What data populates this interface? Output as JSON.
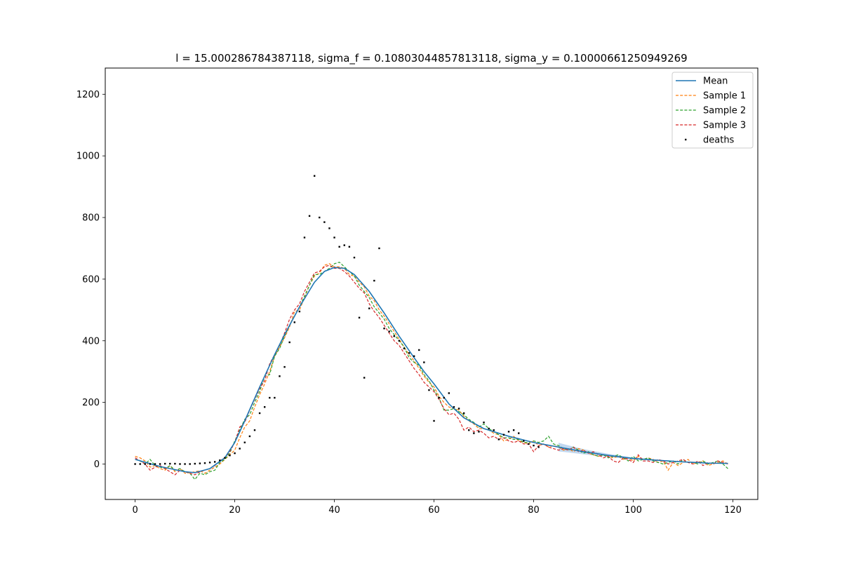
{
  "chart_data": {
    "type": "line",
    "title": "l = 15.000286784387118, sigma_f = 0.10803044857813118, sigma_y = 0.10000661250949269",
    "xlabel": "",
    "ylabel": "",
    "xlim": [
      -6,
      125
    ],
    "ylim": [
      -115,
      1285
    ],
    "xticks": [
      0,
      20,
      40,
      60,
      80,
      100,
      120
    ],
    "yticks": [
      0,
      200,
      400,
      600,
      800,
      1000,
      1200
    ],
    "grid": false,
    "legend_position": "top-right",
    "colors": {
      "mean": "#1f77b4",
      "band": "#a6c8ea",
      "sample1": "#ff7f0e",
      "sample2": "#2ca02c",
      "sample3": "#d62728",
      "deaths": "#000000"
    },
    "legend": [
      "Mean",
      "Sample 1",
      "Sample 2",
      "Sample 3",
      "deaths"
    ],
    "band_start_day": 85,
    "mean": {
      "name": "Mean",
      "x": [
        0,
        5,
        10,
        12,
        15,
        18,
        20,
        22,
        25,
        28,
        30,
        33,
        36,
        38,
        40,
        42,
        44,
        47,
        50,
        53,
        56,
        58,
        60,
        63,
        66,
        70,
        75,
        80,
        85,
        90,
        95,
        100,
        105,
        110,
        115,
        119
      ],
      "y": [
        15,
        -8,
        -25,
        -28,
        -15,
        20,
        70,
        140,
        250,
        355,
        420,
        510,
        590,
        625,
        638,
        635,
        615,
        560,
        490,
        415,
        345,
        300,
        260,
        195,
        150,
        115,
        90,
        70,
        55,
        40,
        28,
        18,
        12,
        7,
        3,
        2
      ]
    },
    "samples": [
      {
        "name": "Sample 1",
        "y": [
          25,
          20,
          10,
          -10,
          -5,
          -15,
          -20,
          -5,
          -25,
          -15,
          -30,
          -28,
          -25,
          -22,
          -30,
          -20,
          -10,
          0,
          15,
          30,
          45,
          85,
          120,
          140,
          185,
          225,
          260,
          300,
          350,
          380,
          410,
          445,
          495,
          500,
          540,
          580,
          610,
          620,
          645,
          650,
          640,
          640,
          635,
          615,
          610,
          590,
          575,
          545,
          530,
          500,
          480,
          455,
          430,
          405,
          380,
          355,
          335,
          310,
          285,
          265,
          250,
          220,
          200,
          185,
          180,
          175,
          155,
          140,
          130,
          115,
          115,
          110,
          100,
          95,
          75,
          80,
          90,
          75,
          70,
          65,
          75,
          60,
          65,
          55,
          60,
          55,
          45,
          50,
          40,
          50,
          45,
          35,
          30,
          25,
          30,
          25,
          20,
          25,
          15,
          20,
          10,
          25,
          15,
          20,
          15,
          5,
          10,
          -20,
          5,
          -5,
          5,
          15,
          0,
          5,
          10,
          -5,
          0,
          5,
          10,
          0
        ]
      },
      {
        "name": "Sample 2",
        "y": [
          15,
          10,
          0,
          15,
          -5,
          -10,
          -15,
          -5,
          -20,
          -15,
          -25,
          -30,
          -50,
          -30,
          -35,
          -25,
          -20,
          5,
          15,
          35,
          75,
          110,
          145,
          160,
          200,
          235,
          285,
          290,
          350,
          375,
          415,
          450,
          480,
          510,
          545,
          580,
          615,
          615,
          625,
          635,
          650,
          655,
          640,
          625,
          610,
          580,
          560,
          540,
          510,
          490,
          470,
          440,
          420,
          400,
          380,
          345,
          330,
          320,
          290,
          270,
          240,
          215,
          175,
          175,
          180,
          170,
          160,
          145,
          135,
          120,
          130,
          115,
          105,
          95,
          85,
          85,
          80,
          80,
          70,
          70,
          75,
          70,
          75,
          90,
          65,
          60,
          50,
          45,
          55,
          45,
          35,
          40,
          30,
          25,
          30,
          20,
          25,
          30,
          20,
          10,
          25,
          10,
          15,
          20,
          10,
          5,
          0,
          5,
          10,
          0,
          15,
          5,
          5,
          0,
          10,
          0,
          5,
          10,
          0,
          -15
        ]
      },
      {
        "name": "Sample 3",
        "y": [
          20,
          10,
          0,
          -20,
          -10,
          -5,
          -15,
          -25,
          -35,
          -20,
          -25,
          -30,
          -35,
          -25,
          -20,
          -15,
          -5,
          10,
          20,
          40,
          70,
          120,
          135,
          175,
          210,
          245,
          270,
          325,
          355,
          385,
          425,
          470,
          500,
          520,
          560,
          590,
          620,
          625,
          640,
          645,
          635,
          635,
          625,
          610,
          590,
          570,
          555,
          520,
          495,
          475,
          450,
          425,
          400,
          385,
          360,
          335,
          310,
          290,
          265,
          250,
          235,
          210,
          180,
          160,
          165,
          145,
          110,
          120,
          105,
          110,
          100,
          85,
          90,
          80,
          85,
          75,
          70,
          75,
          65,
          65,
          40,
          60,
          65,
          55,
          50,
          45,
          50,
          45,
          55,
          40,
          45,
          35,
          40,
          30,
          20,
          25,
          10,
          5,
          20,
          15,
          5,
          30,
          10,
          10,
          5,
          15,
          10,
          0,
          5,
          10,
          15,
          5,
          0,
          10,
          -5,
          5,
          0,
          10,
          5,
          0
        ]
      }
    ],
    "deaths": {
      "name": "deaths",
      "x": [
        0,
        1,
        2,
        3,
        4,
        5,
        6,
        7,
        8,
        9,
        10,
        11,
        12,
        13,
        14,
        15,
        16,
        17,
        18,
        19,
        20,
        21,
        22,
        23,
        24,
        25,
        26,
        27,
        28,
        29,
        30,
        31,
        32,
        33,
        34,
        35,
        36,
        37,
        38,
        39,
        40,
        41,
        42,
        43,
        44,
        45,
        46,
        47,
        48,
        49,
        50,
        51,
        52,
        53,
        54,
        55,
        56,
        57,
        58,
        59,
        60,
        61,
        62,
        63,
        64,
        65,
        66,
        67,
        68,
        69,
        70,
        71,
        72,
        73,
        74,
        75,
        76,
        77,
        78,
        79,
        80,
        81
      ],
      "y": [
        0,
        0,
        0,
        0,
        0,
        0,
        1,
        1,
        1,
        0,
        0,
        0,
        1,
        2,
        3,
        5,
        7,
        12,
        20,
        28,
        35,
        50,
        70,
        90,
        110,
        165,
        185,
        215,
        215,
        285,
        315,
        395,
        460,
        495,
        735,
        805,
        935,
        800,
        785,
        765,
        735,
        705,
        710,
        705,
        670,
        475,
        280,
        505,
        595,
        700,
        440,
        430,
        415,
        400,
        375,
        360,
        350,
        370,
        330,
        240,
        140,
        215,
        215,
        230,
        185,
        180,
        165,
        110,
        100,
        105,
        135,
        115,
        110,
        80,
        95,
        105,
        110,
        100,
        75,
        65,
        60,
        55
      ]
    }
  }
}
